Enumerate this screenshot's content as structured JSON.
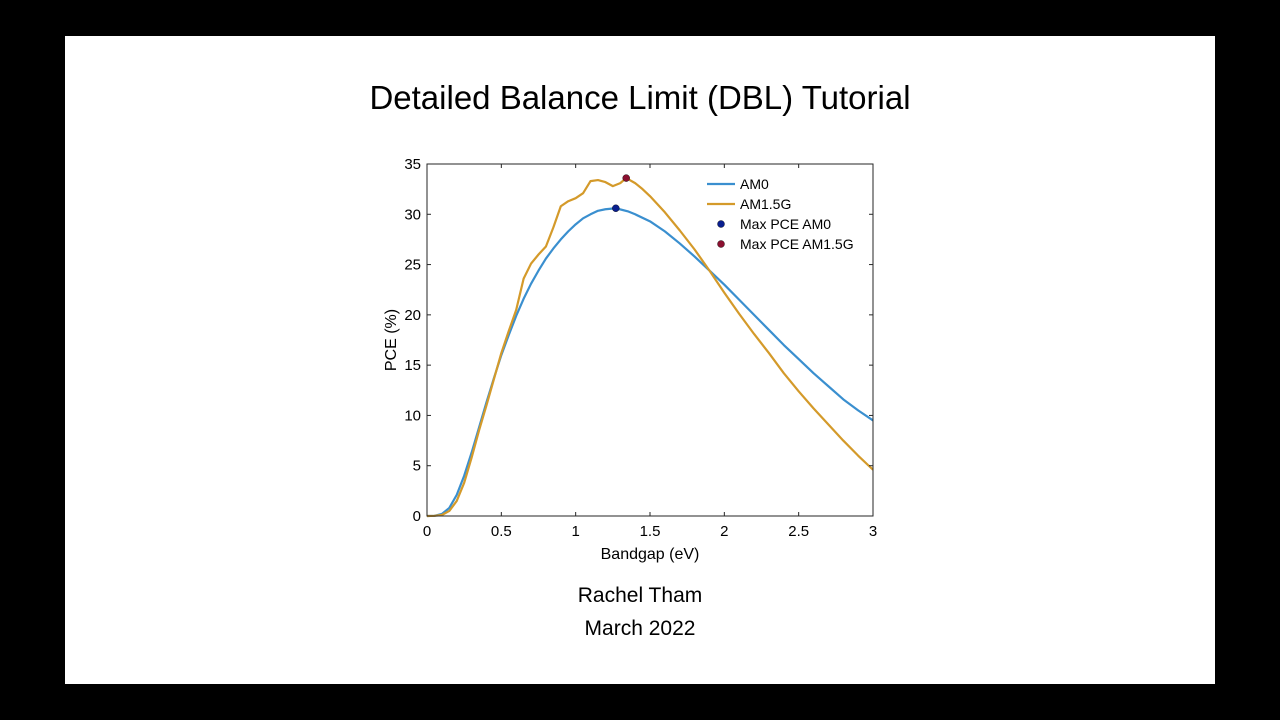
{
  "slide": {
    "title": "Detailed Balance Limit (DBL) Tutorial",
    "author": "Rachel Tham",
    "date": "March 2022"
  },
  "chart_data": {
    "type": "line",
    "title": "",
    "xlabel": "Bandgap (eV)",
    "ylabel": "PCE (%)",
    "xlim": [
      0,
      3
    ],
    "ylim": [
      0,
      35
    ],
    "xticks": [
      0,
      0.5,
      1,
      1.5,
      2,
      2.5,
      3
    ],
    "xtick_labels": [
      "0",
      "0.5",
      "1",
      "1.5",
      "2",
      "2.5",
      "3"
    ],
    "yticks": [
      0,
      5,
      10,
      15,
      20,
      25,
      30,
      35
    ],
    "ytick_labels": [
      "0",
      "5",
      "10",
      "15",
      "20",
      "25",
      "30",
      "35"
    ],
    "grid": false,
    "legend_position": "top-right",
    "series": [
      {
        "name": "AM0",
        "color": "#3a8fcf",
        "x": [
          0,
          0.05,
          0.1,
          0.15,
          0.2,
          0.25,
          0.3,
          0.35,
          0.4,
          0.45,
          0.5,
          0.55,
          0.6,
          0.65,
          0.7,
          0.75,
          0.8,
          0.85,
          0.9,
          0.95,
          1.0,
          1.05,
          1.1,
          1.15,
          1.2,
          1.27,
          1.35,
          1.4,
          1.5,
          1.6,
          1.7,
          1.8,
          1.9,
          2.0,
          2.1,
          2.2,
          2.3,
          2.4,
          2.5,
          2.6,
          2.7,
          2.8,
          2.9,
          3.0
        ],
        "y": [
          0,
          0.02,
          0.2,
          0.8,
          2.1,
          4.0,
          6.3,
          8.8,
          11.3,
          13.7,
          16.0,
          18.0,
          19.9,
          21.6,
          23.1,
          24.4,
          25.6,
          26.6,
          27.5,
          28.3,
          29.0,
          29.6,
          30.0,
          30.35,
          30.5,
          30.6,
          30.3,
          30.0,
          29.3,
          28.3,
          27.1,
          25.8,
          24.4,
          23.0,
          21.5,
          20.0,
          18.5,
          17.0,
          15.6,
          14.2,
          12.9,
          11.6,
          10.5,
          9.5
        ]
      },
      {
        "name": "AM1.5G",
        "color": "#d49a2a",
        "x": [
          0,
          0.05,
          0.1,
          0.15,
          0.2,
          0.25,
          0.3,
          0.35,
          0.4,
          0.45,
          0.5,
          0.55,
          0.6,
          0.65,
          0.7,
          0.75,
          0.8,
          0.85,
          0.9,
          0.95,
          1.0,
          1.05,
          1.1,
          1.15,
          1.2,
          1.25,
          1.3,
          1.34,
          1.4,
          1.45,
          1.5,
          1.6,
          1.7,
          1.8,
          1.9,
          2.0,
          2.1,
          2.2,
          2.3,
          2.4,
          2.5,
          2.6,
          2.7,
          2.8,
          2.9,
          3.0
        ],
        "y": [
          0,
          0.02,
          0.1,
          0.5,
          1.5,
          3.3,
          5.8,
          8.5,
          11.0,
          13.6,
          16.2,
          18.4,
          20.5,
          23.6,
          25.1,
          26.0,
          26.8,
          28.7,
          30.8,
          31.3,
          31.6,
          32.1,
          33.3,
          33.4,
          33.2,
          32.8,
          33.1,
          33.6,
          33.1,
          32.5,
          31.8,
          30.2,
          28.4,
          26.5,
          24.4,
          22.2,
          20.1,
          18.1,
          16.2,
          14.2,
          12.4,
          10.7,
          9.1,
          7.5,
          6.0,
          4.6
        ]
      }
    ],
    "markers": [
      {
        "name": "Max PCE AM0",
        "x": 1.27,
        "y": 30.6,
        "color": "#0a1f8f"
      },
      {
        "name": "Max PCE AM1.5G",
        "x": 1.34,
        "y": 33.6,
        "color": "#8b1030"
      }
    ]
  }
}
